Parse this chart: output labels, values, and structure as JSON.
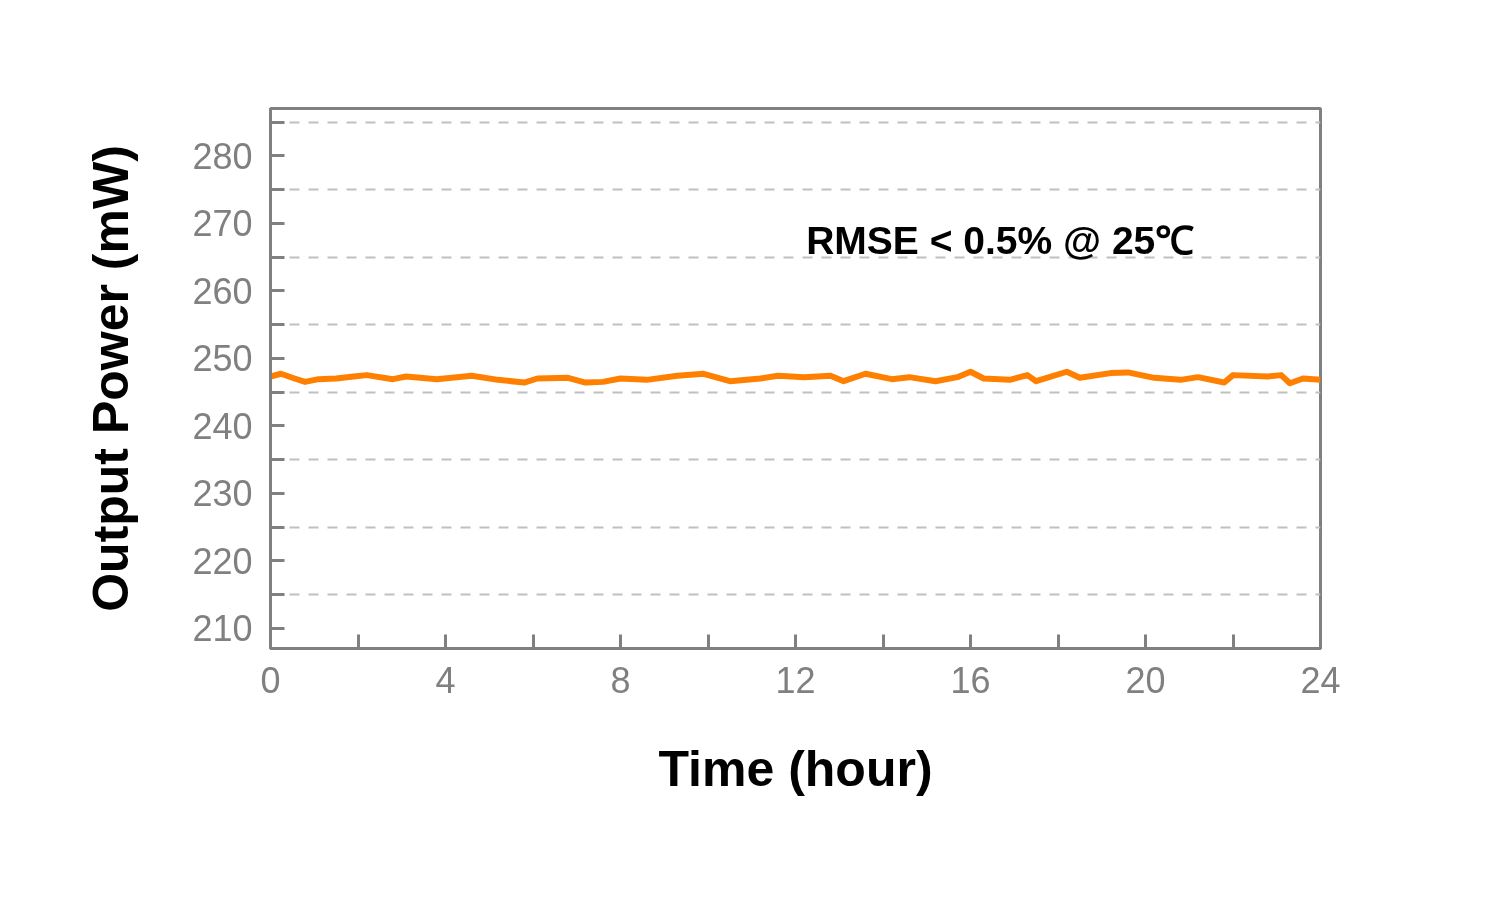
{
  "chart_data": {
    "type": "line",
    "xlabel": "Time (hour)",
    "ylabel": "Output Power (mW)",
    "annotations": [
      "RMSE < 0.5% @ 25℃"
    ],
    "x": [
      0,
      0.24,
      0.55,
      0.79,
      1.1,
      1.5,
      1.9,
      2.2,
      2.8,
      3.1,
      3.8,
      4.6,
      5.2,
      5.8,
      6.1,
      6.8,
      7.2,
      7.6,
      8.0,
      8.6,
      9.3,
      9.9,
      10.5,
      11.2,
      11.6,
      12.2,
      12.8,
      13.1,
      13.6,
      14.2,
      14.6,
      15.2,
      15.7,
      16.0,
      16.3,
      16.9,
      17.3,
      17.5,
      18.2,
      18.5,
      19.2,
      19.6,
      20.2,
      20.8,
      21.2,
      21.8,
      22.0,
      22.8,
      23.1,
      23.3,
      23.6,
      24
    ],
    "series": [
      {
        "color": "#ff8000",
        "values": [
          247.3,
          247.7,
          247.0,
          246.5,
          246.9,
          247.0,
          247.3,
          247.5,
          246.9,
          247.3,
          246.9,
          247.4,
          246.8,
          246.4,
          247.0,
          247.1,
          246.4,
          246.5,
          247.0,
          246.8,
          247.4,
          247.7,
          246.6,
          247.0,
          247.4,
          247.2,
          247.4,
          246.6,
          247.7,
          246.9,
          247.2,
          246.6,
          247.2,
          248.0,
          247.0,
          246.8,
          247.5,
          246.6,
          248.0,
          247.1,
          247.8,
          247.9,
          247.1,
          246.8,
          247.2,
          246.4,
          247.5,
          247.3,
          247.5,
          246.3,
          247.0,
          246.8
        ]
      }
    ],
    "xlim": [
      0,
      24
    ],
    "ylim": [
      207,
      287
    ],
    "xticks": [
      0,
      {
        "value": 2,
        "label": null
      },
      4,
      {
        "value": 6,
        "label": null
      },
      8,
      {
        "value": 10,
        "label": null
      },
      12,
      {
        "value": 14,
        "label": null
      },
      16,
      {
        "value": 18,
        "label": null
      },
      20,
      {
        "value": 22,
        "label": null
      },
      24
    ],
    "yticks": [
      210,
      {
        "value": 215,
        "label": null
      },
      220,
      {
        "value": 225,
        "label": null
      },
      230,
      {
        "value": 235,
        "label": null
      },
      240,
      {
        "value": 245,
        "label": null
      },
      250,
      {
        "value": 255,
        "label": null
      },
      260,
      {
        "value": 265,
        "label": null
      },
      270,
      {
        "value": 275,
        "label": null
      },
      280,
      {
        "value": 285,
        "label": null
      }
    ],
    "grid": "y",
    "line_style": "solid"
  }
}
